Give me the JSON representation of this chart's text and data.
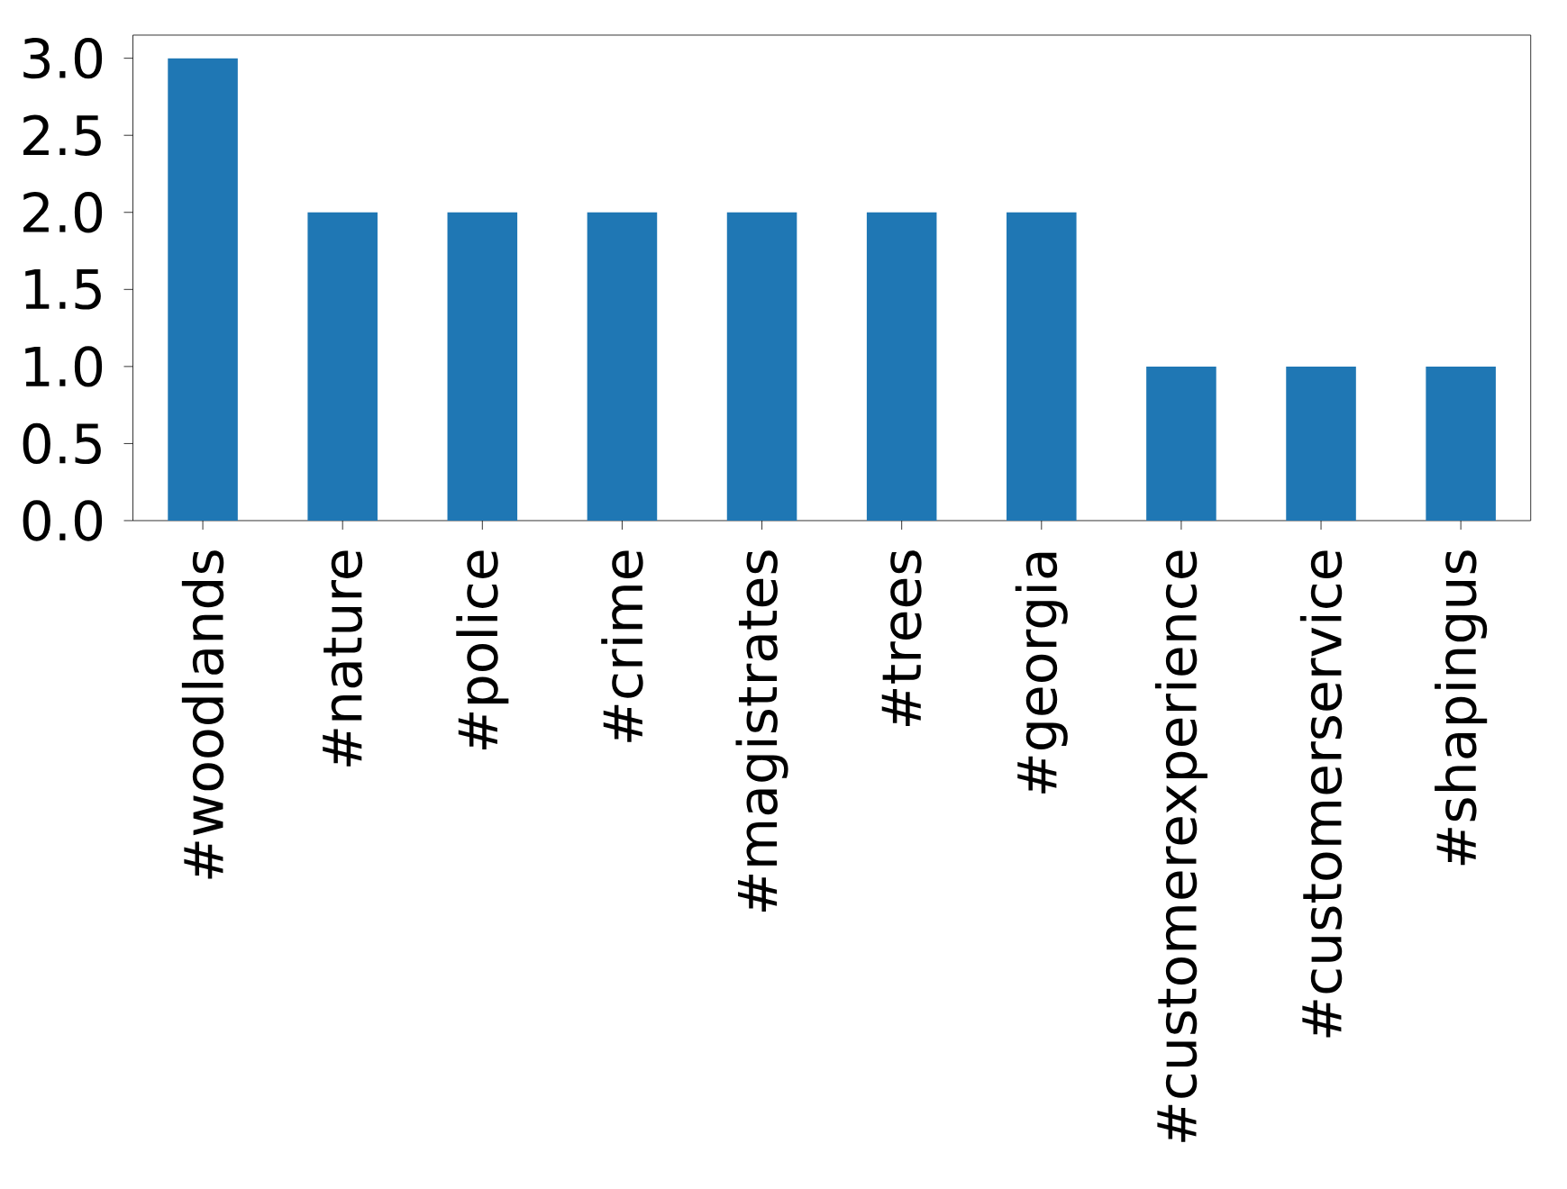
{
  "chart_data": {
    "type": "bar",
    "categories": [
      "#woodlands",
      "#nature",
      "#police",
      "#crime",
      "#magistrates",
      "#trees",
      "#georgia",
      "#customerexperience",
      "#customerservice",
      "#shapingus"
    ],
    "values": [
      3,
      2,
      2,
      2,
      2,
      2,
      2,
      1,
      1,
      1
    ],
    "color": "#1f77b4",
    "ylim": [
      0,
      3.15
    ],
    "yticks": [
      {
        "value": 0,
        "label": "0.0"
      },
      {
        "value": 0.5,
        "label": "0.5"
      },
      {
        "value": 1,
        "label": "1.0"
      },
      {
        "value": 1.5,
        "label": "1.5"
      },
      {
        "value": 2,
        "label": "2.0"
      },
      {
        "value": 2.5,
        "label": "2.5"
      },
      {
        "value": 3,
        "label": "3.0"
      }
    ],
    "grid": false
  }
}
